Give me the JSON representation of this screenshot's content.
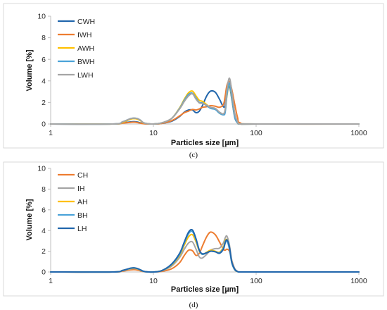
{
  "chart_data": [
    {
      "type": "line",
      "caption": "(c)",
      "xlabel": "Particles size [µm]",
      "ylabel": "Volume [%]",
      "x_scale": "log",
      "xlim": [
        1,
        1000
      ],
      "ylim": [
        0,
        10
      ],
      "x_ticks": [
        "1",
        "10",
        "100",
        "1000"
      ],
      "y_ticks": [
        "0",
        "2",
        "4",
        "6",
        "8",
        "10"
      ],
      "grid": false,
      "legend_position": "top-left",
      "series": [
        {
          "name": "CWH",
          "color": "#2166ac",
          "x": [
            1,
            4,
            5,
            6,
            6.5,
            7,
            7.5,
            8,
            9,
            10,
            12,
            15,
            18,
            20,
            22,
            24,
            26,
            28,
            30,
            33,
            36,
            40,
            44,
            48,
            50,
            52,
            55,
            58,
            62,
            66,
            70,
            100,
            1000
          ],
          "y": [
            0,
            0,
            0.1,
            0.2,
            0.22,
            0.18,
            0.1,
            0.04,
            0.01,
            0,
            0.05,
            0.25,
            0.7,
            1.1,
            1.3,
            1.3,
            1.05,
            1.2,
            1.7,
            2.6,
            3.05,
            2.95,
            2.3,
            1.6,
            1.8,
            3.0,
            3.5,
            2.3,
            0.6,
            0.1,
            0,
            0,
            0
          ]
        },
        {
          "name": "IWH",
          "color": "#ed7d31",
          "x": [
            1,
            4,
            5,
            6,
            6.5,
            7,
            7.5,
            8,
            9,
            10,
            12,
            15,
            18,
            20,
            22,
            24,
            26,
            28,
            30,
            33,
            36,
            40,
            44,
            48,
            50,
            52,
            55,
            58,
            62,
            66,
            70,
            100,
            1000
          ],
          "y": [
            0,
            0,
            0.08,
            0.15,
            0.17,
            0.13,
            0.07,
            0.02,
            0,
            0,
            0.05,
            0.3,
            0.75,
            1.05,
            1.2,
            1.35,
            1.3,
            1.4,
            1.55,
            1.6,
            1.7,
            1.65,
            1.55,
            1.8,
            2.6,
            3.6,
            3.95,
            3.2,
            1.8,
            0.6,
            0.1,
            0,
            0
          ]
        },
        {
          "name": "AWH",
          "color": "#ffc000",
          "x": [
            1,
            4,
            5,
            6,
            6.5,
            7,
            7.5,
            8,
            9,
            10,
            12,
            15,
            18,
            20,
            22,
            24,
            26,
            28,
            30,
            33,
            36,
            40,
            44,
            48,
            50,
            52,
            55,
            58,
            62,
            66,
            70,
            100,
            1000
          ],
          "y": [
            0,
            0,
            0.15,
            0.45,
            0.5,
            0.45,
            0.3,
            0.1,
            0.02,
            0,
            0.1,
            0.5,
            1.5,
            2.3,
            2.9,
            3.05,
            2.6,
            2.2,
            2.1,
            1.8,
            1.5,
            1.4,
            1.0,
            0.9,
            1.2,
            2.6,
            3.7,
            2.4,
            0.7,
            0.1,
            0,
            0,
            0
          ]
        },
        {
          "name": "BWH",
          "color": "#4ba3d9",
          "x": [
            1,
            4,
            5,
            6,
            6.5,
            7,
            7.5,
            8,
            9,
            10,
            12,
            15,
            18,
            20,
            22,
            24,
            26,
            28,
            30,
            33,
            36,
            40,
            44,
            48,
            50,
            52,
            55,
            58,
            62,
            66,
            70,
            100,
            1000
          ],
          "y": [
            0,
            0,
            0.2,
            0.5,
            0.55,
            0.5,
            0.35,
            0.12,
            0.02,
            0,
            0.1,
            0.5,
            1.45,
            2.2,
            2.75,
            2.85,
            2.4,
            2.0,
            1.95,
            1.7,
            1.45,
            1.35,
            1.0,
            0.85,
            1.1,
            2.7,
            3.8,
            2.5,
            0.7,
            0.1,
            0,
            0,
            0
          ]
        },
        {
          "name": "LWH",
          "color": "#a5a5a5",
          "x": [
            1,
            4,
            5,
            6,
            6.5,
            7,
            7.5,
            8,
            9,
            10,
            12,
            15,
            18,
            20,
            22,
            24,
            26,
            28,
            30,
            33,
            36,
            40,
            44,
            48,
            50,
            52,
            55,
            58,
            62,
            66,
            70,
            100,
            1000
          ],
          "y": [
            0,
            0,
            0.2,
            0.5,
            0.55,
            0.5,
            0.35,
            0.12,
            0.02,
            0,
            0.1,
            0.5,
            1.4,
            2.1,
            2.6,
            2.8,
            2.3,
            1.95,
            1.9,
            1.75,
            1.55,
            1.45,
            1.1,
            0.95,
            1.4,
            3.2,
            4.25,
            3.0,
            1.0,
            0.2,
            0,
            0,
            0
          ]
        }
      ]
    },
    {
      "type": "line",
      "caption": "(d)",
      "xlabel": "Particles size [µm]",
      "ylabel": "Volume [%]",
      "x_scale": "log",
      "xlim": [
        1,
        1000
      ],
      "ylim": [
        0,
        10
      ],
      "x_ticks": [
        "1",
        "10",
        "100",
        "1000"
      ],
      "y_ticks": [
        "0",
        "2",
        "4",
        "6",
        "8",
        "10"
      ],
      "grid": false,
      "legend_position": "top-left",
      "series": [
        {
          "name": "CH",
          "color": "#ed7d31",
          "x": [
            1,
            4,
            5,
            6,
            6.5,
            7,
            7.5,
            8,
            9,
            10,
            12,
            15,
            18,
            20,
            22,
            24,
            26,
            28,
            30,
            33,
            36,
            40,
            44,
            48,
            50,
            52,
            55,
            58,
            62,
            66,
            70,
            100,
            1000
          ],
          "y": [
            0,
            0,
            0.08,
            0.2,
            0.22,
            0.18,
            0.1,
            0.03,
            0,
            0,
            0.05,
            0.3,
            0.9,
            1.6,
            2.1,
            2.05,
            1.6,
            1.8,
            2.5,
            3.4,
            3.85,
            3.6,
            2.9,
            2.2,
            2.1,
            2.2,
            2.0,
            1.1,
            0.3,
            0.05,
            0,
            0,
            0
          ]
        },
        {
          "name": "IH",
          "color": "#a5a5a5",
          "x": [
            1,
            4,
            5,
            6,
            6.5,
            7,
            7.5,
            8,
            9,
            10,
            12,
            15,
            18,
            20,
            22,
            24,
            26,
            28,
            30,
            33,
            36,
            40,
            44,
            48,
            50,
            52,
            55,
            58,
            62,
            66,
            70,
            100,
            1000
          ],
          "y": [
            0,
            0,
            0.12,
            0.3,
            0.33,
            0.28,
            0.16,
            0.05,
            0,
            0,
            0.1,
            0.55,
            1.4,
            2.2,
            2.8,
            2.9,
            2.2,
            1.45,
            1.35,
            1.7,
            2.1,
            2.25,
            2.3,
            2.8,
            3.3,
            3.45,
            2.6,
            1.1,
            0.3,
            0.05,
            0,
            0,
            0
          ]
        },
        {
          "name": "AH",
          "color": "#ffc000",
          "x": [
            1,
            4,
            5,
            6,
            6.5,
            7,
            7.5,
            8,
            9,
            10,
            12,
            15,
            18,
            20,
            22,
            24,
            26,
            28,
            30,
            33,
            36,
            40,
            44,
            48,
            50,
            52,
            55,
            58,
            62,
            66,
            70,
            100,
            1000
          ],
          "y": [
            0,
            0,
            0.15,
            0.33,
            0.36,
            0.3,
            0.18,
            0.06,
            0,
            0,
            0.12,
            0.65,
            1.6,
            2.6,
            3.4,
            3.6,
            2.9,
            2.0,
            1.7,
            1.9,
            2.1,
            2.0,
            1.9,
            2.4,
            3.0,
            3.1,
            2.3,
            0.9,
            0.2,
            0.03,
            0,
            0,
            0
          ]
        },
        {
          "name": "BH",
          "color": "#4ba3d9",
          "x": [
            1,
            4,
            5,
            6,
            6.5,
            7,
            7.5,
            8,
            9,
            10,
            12,
            15,
            18,
            20,
            22,
            24,
            26,
            28,
            30,
            33,
            36,
            40,
            44,
            48,
            50,
            52,
            55,
            58,
            62,
            66,
            70,
            100,
            1000
          ],
          "y": [
            0,
            0,
            0.15,
            0.35,
            0.38,
            0.32,
            0.2,
            0.06,
            0,
            0,
            0.12,
            0.7,
            1.7,
            2.8,
            3.7,
            3.9,
            3.1,
            2.05,
            1.7,
            1.85,
            2.0,
            1.95,
            1.85,
            2.3,
            2.9,
            3.0,
            2.2,
            0.85,
            0.2,
            0.03,
            0,
            0,
            0
          ]
        },
        {
          "name": "LH",
          "color": "#2166ac",
          "x": [
            1,
            4,
            5,
            6,
            6.5,
            7,
            7.5,
            8,
            9,
            10,
            12,
            15,
            18,
            20,
            22,
            24,
            26,
            28,
            30,
            33,
            36,
            40,
            44,
            48,
            50,
            52,
            55,
            58,
            62,
            66,
            70,
            100,
            1000
          ],
          "y": [
            0,
            0,
            0.15,
            0.37,
            0.4,
            0.33,
            0.2,
            0.07,
            0,
            0,
            0.12,
            0.75,
            1.8,
            2.9,
            3.85,
            4.05,
            3.2,
            2.1,
            1.75,
            1.85,
            2.0,
            1.95,
            1.8,
            2.2,
            2.8,
            3.1,
            2.4,
            0.95,
            0.25,
            0.04,
            0,
            0,
            0
          ]
        }
      ]
    }
  ]
}
